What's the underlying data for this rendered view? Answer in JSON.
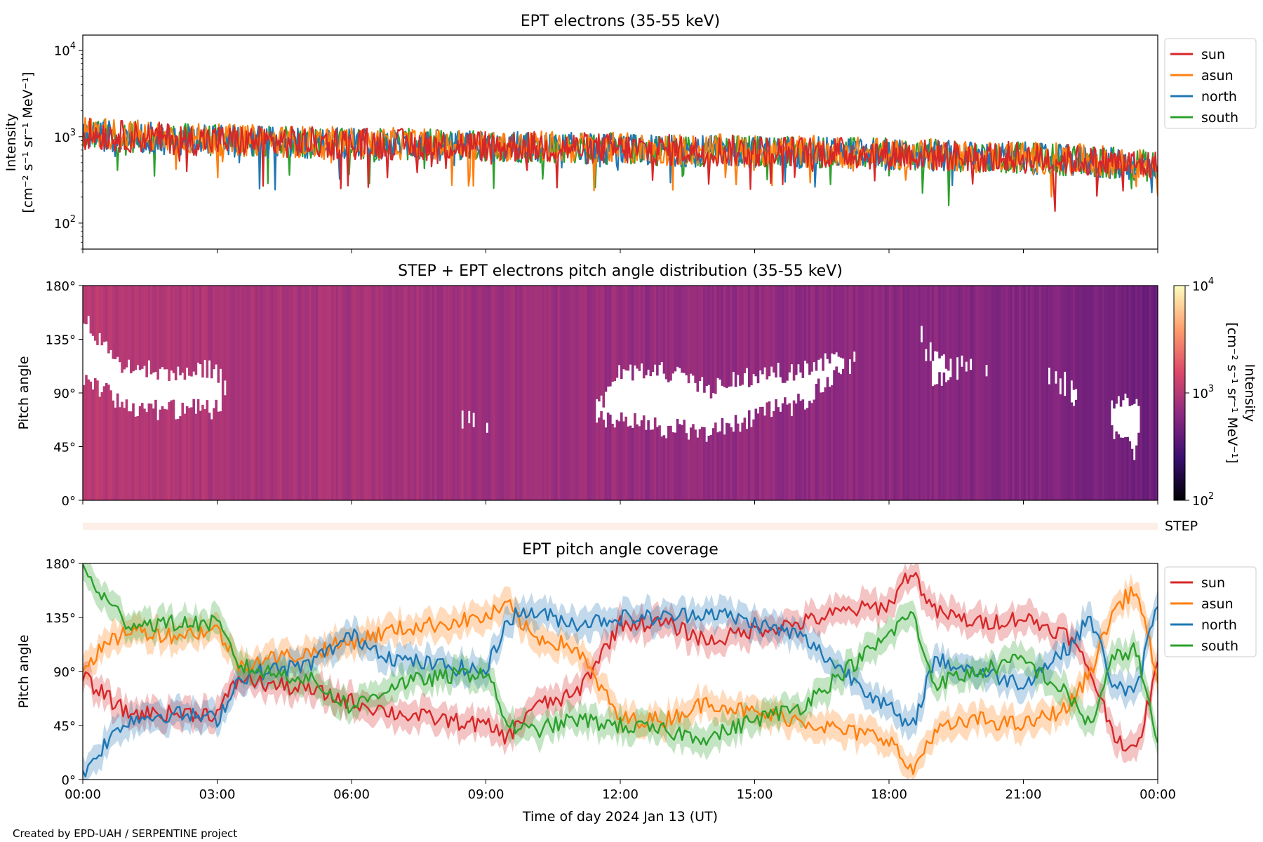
{
  "figure": {
    "credit": "Created by EPD-UAH / SERPENTINE project",
    "xlabel": "Time of day 2024 Jan 13 (UT)",
    "xticks": [
      "00:00",
      "03:00",
      "06:00",
      "09:00",
      "12:00",
      "15:00",
      "18:00",
      "21:00",
      "00:00"
    ]
  },
  "colors": {
    "sun": "#d62728",
    "asun": "#ff7f0e",
    "north": "#1f77b4",
    "south": "#2ca02c",
    "step": "#fdeee8"
  },
  "chart_data": [
    {
      "type": "line",
      "title": "EPT electrons (35-55 keV)",
      "ylabel_1": "Intensity",
      "ylabel_2": "[cm⁻² s⁻¹ sr⁻¹ MeV⁻¹]",
      "yscale": "log",
      "ylim": [
        50,
        15000
      ],
      "yticks": [
        {
          "base": "10",
          "exp": "2",
          "value": 100
        },
        {
          "base": "10",
          "exp": "3",
          "value": 1000
        },
        {
          "base": "10",
          "exp": "4",
          "value": 10000
        }
      ],
      "xlim_hours": [
        0,
        24
      ],
      "legend": "outside-right",
      "series": [
        {
          "name": "sun",
          "key": "sun",
          "x_hours": [
            0,
            1,
            2,
            3,
            4,
            5,
            6,
            7,
            8,
            9,
            10,
            11,
            12,
            13,
            14,
            15,
            16,
            17,
            18,
            19,
            20,
            21,
            22,
            23,
            24
          ],
          "values": [
            1100,
            1000,
            950,
            900,
            880,
            860,
            840,
            820,
            800,
            780,
            760,
            740,
            720,
            700,
            690,
            680,
            670,
            650,
            630,
            610,
            590,
            570,
            540,
            500,
            450
          ]
        },
        {
          "name": "asun",
          "key": "asun",
          "x_hours": [
            0,
            1,
            2,
            3,
            4,
            5,
            6,
            7,
            8,
            9,
            10,
            11,
            12,
            13,
            14,
            15,
            16,
            17,
            18,
            19,
            20,
            21,
            22,
            23,
            24
          ],
          "values": [
            1150,
            1050,
            980,
            920,
            900,
            870,
            850,
            830,
            810,
            790,
            770,
            750,
            730,
            710,
            700,
            690,
            680,
            660,
            640,
            620,
            600,
            580,
            550,
            510,
            460
          ]
        },
        {
          "name": "north",
          "key": "north",
          "x_hours": [
            0,
            1,
            2,
            3,
            4,
            5,
            6,
            7,
            8,
            9,
            10,
            11,
            12,
            13,
            14,
            15,
            16,
            17,
            18,
            19,
            20,
            21,
            22,
            23,
            24
          ],
          "values": [
            1050,
            990,
            940,
            890,
            870,
            850,
            830,
            810,
            790,
            770,
            750,
            730,
            710,
            690,
            680,
            670,
            660,
            640,
            620,
            600,
            580,
            560,
            530,
            490,
            440
          ]
        },
        {
          "name": "south",
          "key": "south",
          "x_hours": [
            0,
            1,
            2,
            3,
            4,
            5,
            6,
            7,
            8,
            9,
            10,
            11,
            12,
            13,
            14,
            15,
            16,
            17,
            18,
            19,
            20,
            21,
            22,
            23,
            24
          ],
          "values": [
            1080,
            1000,
            950,
            900,
            880,
            860,
            840,
            820,
            800,
            780,
            760,
            740,
            720,
            700,
            690,
            680,
            670,
            650,
            630,
            610,
            590,
            570,
            540,
            500,
            450
          ]
        }
      ]
    },
    {
      "type": "heatmap",
      "title": "STEP + EPT electrons pitch angle distribution (35-55 keV)",
      "ylabel": "Pitch angle",
      "yticks": [
        "0°",
        "45°",
        "90°",
        "135°",
        "180°"
      ],
      "ylim": [
        0,
        180
      ],
      "xlim_hours": [
        0,
        24
      ],
      "colorbar": {
        "label_1": "Intensity",
        "label_2": "[cm⁻² s⁻¹ sr⁻¹ MeV⁻¹]",
        "scale": "log",
        "range": [
          100,
          10000
        ],
        "ticks": [
          {
            "base": "10",
            "exp": "2",
            "value": 100
          },
          {
            "base": "10",
            "exp": "3",
            "value": 1000
          },
          {
            "base": "10",
            "exp": "4",
            "value": 10000
          }
        ]
      },
      "intensity_by_hour": [
        1100,
        1000,
        950,
        900,
        880,
        860,
        840,
        820,
        800,
        780,
        760,
        740,
        720,
        700,
        690,
        680,
        670,
        650,
        630,
        610,
        590,
        570,
        540,
        500,
        450
      ]
    },
    {
      "type": "bar",
      "label": "STEP",
      "xlim_hours": [
        0,
        24
      ],
      "note_color": "step"
    },
    {
      "type": "area",
      "title": "EPT pitch angle coverage",
      "ylabel": "Pitch angle",
      "yticks": [
        "0°",
        "45°",
        "90°",
        "135°",
        "180°"
      ],
      "ylim": [
        0,
        180
      ],
      "xlim_hours": [
        0,
        24
      ],
      "legend": "outside-right",
      "series": [
        {
          "name": "sun",
          "key": "sun",
          "x_hours": [
            0,
            0.5,
            1,
            2,
            3,
            3.5,
            4,
            5,
            6,
            6.5,
            7,
            8,
            9,
            9.5,
            10,
            11,
            12,
            13,
            14,
            15,
            16,
            17,
            18,
            18.5,
            19,
            20,
            21,
            22,
            22.5,
            23,
            23.5,
            24
          ],
          "values": [
            85,
            70,
            55,
            55,
            55,
            85,
            80,
            75,
            65,
            60,
            55,
            50,
            45,
            35,
            60,
            70,
            130,
            130,
            115,
            125,
            130,
            140,
            145,
            175,
            140,
            130,
            135,
            120,
            90,
            40,
            20,
            95
          ]
        },
        {
          "name": "asun",
          "key": "asun",
          "x_hours": [
            0,
            0.5,
            1,
            2,
            3,
            3.5,
            4,
            5,
            6,
            6.5,
            7,
            8,
            9,
            9.5,
            10,
            11,
            12,
            13,
            14,
            15,
            16,
            17,
            18,
            18.5,
            19,
            20,
            21,
            22,
            22.5,
            23,
            23.5,
            24
          ],
          "values": [
            95,
            110,
            125,
            120,
            125,
            95,
            100,
            105,
            115,
            120,
            125,
            130,
            135,
            145,
            120,
            110,
            50,
            50,
            65,
            55,
            50,
            40,
            35,
            5,
            40,
            50,
            45,
            60,
            90,
            140,
            160,
            85
          ]
        },
        {
          "name": "north",
          "key": "north",
          "x_hours": [
            0,
            0.5,
            1,
            2,
            3,
            3.5,
            4,
            5,
            6,
            6.5,
            7,
            8,
            9,
            9.5,
            10,
            11,
            12,
            13,
            14,
            15,
            16,
            17,
            18,
            18.5,
            19,
            20,
            21,
            22,
            22.5,
            23,
            23.5,
            24
          ],
          "values": [
            5,
            30,
            50,
            55,
            50,
            85,
            90,
            95,
            120,
            110,
            100,
            95,
            90,
            135,
            140,
            130,
            135,
            135,
            140,
            130,
            120,
            90,
            60,
            40,
            100,
            90,
            80,
            110,
            135,
            80,
            70,
            150
          ]
        },
        {
          "name": "south",
          "key": "south",
          "x_hours": [
            0,
            0.5,
            1,
            2,
            3,
            3.5,
            4,
            5,
            6,
            6.5,
            7,
            8,
            9,
            9.5,
            10,
            11,
            12,
            13,
            14,
            15,
            16,
            17,
            18,
            18.5,
            19,
            20,
            21,
            22,
            22.5,
            23,
            23.5,
            24
          ],
          "values": [
            175,
            150,
            130,
            130,
            130,
            95,
            90,
            85,
            60,
            70,
            80,
            85,
            90,
            45,
            40,
            50,
            45,
            40,
            35,
            50,
            60,
            90,
            120,
            140,
            80,
            90,
            100,
            70,
            45,
            100,
            110,
            30
          ]
        }
      ]
    }
  ]
}
